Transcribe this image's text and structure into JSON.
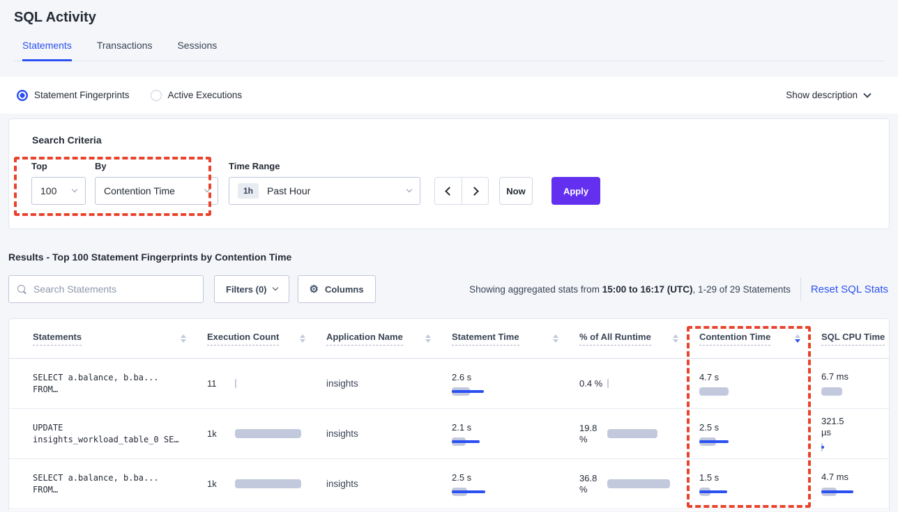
{
  "page": {
    "title": "SQL Activity"
  },
  "tabs": {
    "statements": "Statements",
    "transactions": "Transactions",
    "sessions": "Sessions"
  },
  "view_toggle": {
    "fingerprints": "Statement Fingerprints",
    "active_executions": "Active Executions",
    "show_description": "Show description"
  },
  "search_criteria": {
    "heading": "Search Criteria",
    "top_label": "Top",
    "top_value": "100",
    "by_label": "By",
    "by_value": "Contention Time",
    "time_range_label": "Time Range",
    "time_range_badge": "1h",
    "time_range_value": "Past Hour",
    "now_label": "Now",
    "apply_label": "Apply"
  },
  "results_bar": {
    "heading": "Results - Top 100 Statement Fingerprints by Contention Time",
    "search_placeholder": "Search Statements",
    "filters_label": "Filters (0)",
    "columns_label": "Columns",
    "showing_prefix": "Showing aggregated stats from ",
    "showing_bold": "15:00 to 16:17 (UTC)",
    "showing_suffix": ", 1-29 of 29 Statements",
    "reset_link": "Reset SQL Stats"
  },
  "icons": {
    "gear_glyph": "⚙"
  },
  "colors": {
    "accent_blue": "#2b50f2",
    "apply_purple": "#6430f0",
    "annotation_red": "#e8432d",
    "bar_gray": "#c3c9dd"
  },
  "table": {
    "headers": {
      "statements": "Statements",
      "execution_count": "Execution Count",
      "application_name": "Application Name",
      "statement_time": "Statement Time",
      "pct_runtime": "% of All Runtime",
      "contention_time": "Contention Time",
      "sql_cpu_time": "SQL CPU Time"
    },
    "sorted_by": "Contention Time",
    "sort_direction": "desc",
    "rows": [
      {
        "statement": {
          "line1": "SELECT a.balance, b.ba...",
          "line2": "FROM…"
        },
        "exec": {
          "text": "11",
          "bar": 2
        },
        "app": "insights",
        "stmt_time": {
          "text": "2.6 s",
          "bar": 26,
          "line": 46
        },
        "pct": {
          "line1": "0.4 %",
          "line2": "",
          "bar": 2
        },
        "contention": {
          "text": "4.7 s",
          "bar": 42,
          "line": 0
        },
        "cpu": {
          "text1": "6.7 ms",
          "text2": "",
          "bar": 30,
          "line": 0
        }
      },
      {
        "statement": {
          "line1": "UPDATE",
          "line2": "insights_workload_table_0 SE…"
        },
        "exec": {
          "text": "1k",
          "bar": 95
        },
        "app": "insights",
        "stmt_time": {
          "text": "2.1 s",
          "bar": 20,
          "line": 40
        },
        "pct": {
          "line1": "19.8",
          "line2": "%",
          "bar": 72
        },
        "contention": {
          "text": "2.5 s",
          "bar": 24,
          "line": 42
        },
        "cpu": {
          "text1": "321.5",
          "text2": "µs",
          "bar": 2,
          "line": 4
        }
      },
      {
        "statement": {
          "line1": "SELECT a.balance, b.ba...",
          "line2": "FROM…"
        },
        "exec": {
          "text": "1k",
          "bar": 95
        },
        "app": "insights",
        "stmt_time": {
          "text": "2.5 s",
          "bar": 22,
          "line": 48
        },
        "pct": {
          "line1": "36.8",
          "line2": "%",
          "bar": 90
        },
        "contention": {
          "text": "1.5 s",
          "bar": 16,
          "line": 40
        },
        "cpu": {
          "text1": "4.7 ms",
          "text2": "",
          "bar": 22,
          "line": 46
        }
      }
    ]
  }
}
